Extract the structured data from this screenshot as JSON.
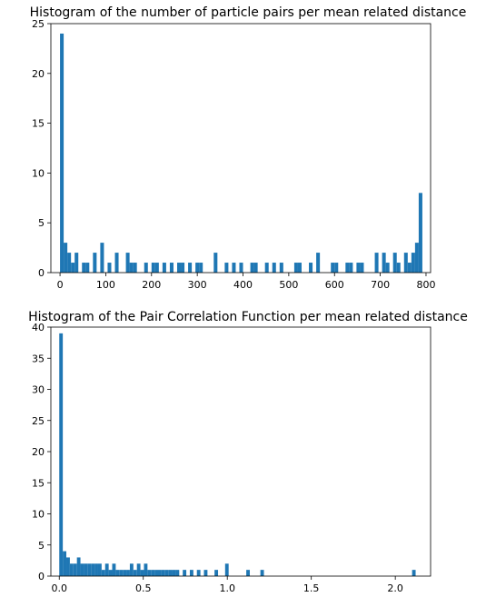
{
  "chart_data": [
    {
      "type": "bar",
      "title": "Histogram of the number of particle pairs per mean related distance",
      "xlabel": "",
      "ylabel": "",
      "xlim": [
        -20,
        810
      ],
      "ylim": [
        0,
        25
      ],
      "xticks": [
        0,
        100,
        200,
        300,
        400,
        500,
        600,
        700,
        800
      ],
      "yticks": [
        0,
        5,
        10,
        15,
        20,
        25
      ],
      "grid": false,
      "color": "#1f77b4",
      "bin_width": 8,
      "x": [
        0,
        8,
        16,
        24,
        32,
        48,
        56,
        72,
        88,
        104,
        120,
        144,
        152,
        160,
        184,
        200,
        208,
        224,
        240,
        256,
        264,
        280,
        296,
        304,
        336,
        360,
        376,
        392,
        416,
        424,
        448,
        464,
        480,
        512,
        520,
        544,
        560,
        592,
        600,
        624,
        632,
        648,
        656,
        688,
        704,
        712,
        728,
        736,
        752,
        760,
        768,
        776,
        784
      ],
      "values": [
        24,
        3,
        2,
        1,
        2,
        1,
        1,
        2,
        3,
        1,
        2,
        2,
        1,
        1,
        1,
        1,
        1,
        1,
        1,
        1,
        1,
        1,
        1,
        1,
        2,
        1,
        1,
        1,
        1,
        1,
        1,
        1,
        1,
        1,
        1,
        1,
        2,
        1,
        1,
        1,
        1,
        1,
        1,
        2,
        2,
        1,
        2,
        1,
        2,
        1,
        2,
        3,
        8
      ]
    },
    {
      "type": "bar",
      "title": "Histogram of the Pair Correlation Function per mean related distance",
      "xlabel": "",
      "ylabel": "",
      "xlim": [
        -0.05,
        2.21
      ],
      "ylim": [
        0,
        40
      ],
      "xticks": [
        "0.0",
        "0.5",
        "1.0",
        "1.5",
        "2.0"
      ],
      "yticks": [
        0,
        5,
        10,
        15,
        20,
        25,
        30,
        35,
        40
      ],
      "grid": false,
      "color": "#1f77b4",
      "bin_width": 0.021,
      "x": [
        0.0,
        0.021,
        0.042,
        0.063,
        0.084,
        0.105,
        0.126,
        0.147,
        0.168,
        0.189,
        0.21,
        0.231,
        0.252,
        0.273,
        0.294,
        0.315,
        0.336,
        0.357,
        0.378,
        0.399,
        0.42,
        0.441,
        0.462,
        0.483,
        0.504,
        0.525,
        0.546,
        0.567,
        0.588,
        0.609,
        0.63,
        0.651,
        0.672,
        0.693,
        0.735,
        0.777,
        0.819,
        0.861,
        0.924,
        0.987,
        1.113,
        1.197,
        2.1
      ],
      "values": [
        39,
        4,
        3,
        2,
        2,
        3,
        2,
        2,
        2,
        2,
        2,
        2,
        1,
        2,
        1,
        2,
        1,
        1,
        1,
        1,
        2,
        1,
        2,
        1,
        2,
        1,
        1,
        1,
        1,
        1,
        1,
        1,
        1,
        1,
        1,
        1,
        1,
        1,
        1,
        2,
        1,
        1,
        1
      ]
    }
  ]
}
